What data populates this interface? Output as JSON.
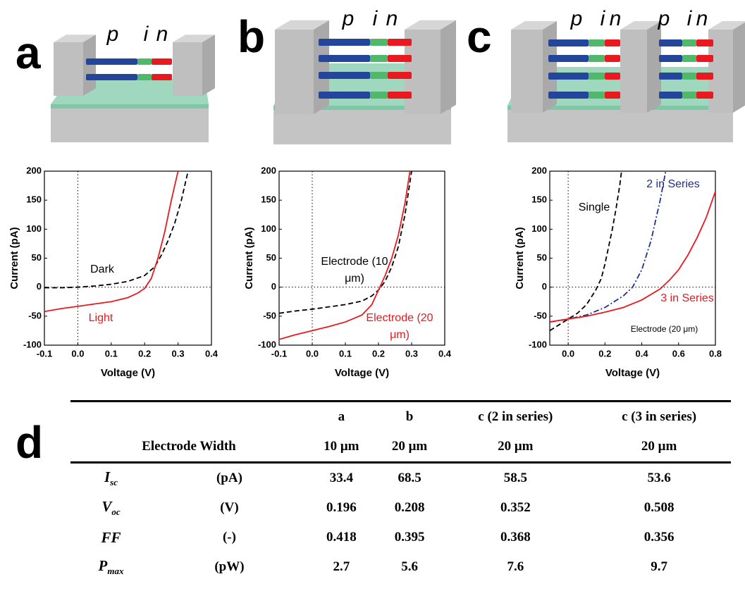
{
  "panel_letters": [
    "a",
    "b",
    "c",
    "d"
  ],
  "diagrams": [
    {
      "labels": [
        "p",
        "i",
        "n"
      ]
    },
    {
      "labels": [
        "p",
        "i",
        "n"
      ]
    },
    {
      "labels": [
        "p",
        "i",
        "n",
        "p",
        "i",
        "n"
      ]
    }
  ],
  "chart_data": [
    {
      "type": "line",
      "x_label": "Voltage (V)",
      "y_label": "Current (pA)",
      "xlim": [
        -0.1,
        0.4
      ],
      "ylim": [
        -100,
        200
      ],
      "xticks": [
        -0.1,
        {
          "value": 0,
          "label": "0.0"
        },
        0.1,
        0.2,
        0.3,
        0.4
      ],
      "yticks": [
        -100,
        -50,
        0,
        50,
        100,
        150,
        200
      ],
      "series": [
        {
          "name": "Dark",
          "color": "#000000",
          "dash": "dashed",
          "x": [
            -0.1,
            -0.05,
            0,
            0.05,
            0.1,
            0.15,
            0.2,
            0.23,
            0.25,
            0.27,
            0.29,
            0.31,
            0.33
          ],
          "values": [
            -1,
            -1,
            0,
            2,
            5,
            10,
            20,
            35,
            55,
            80,
            110,
            150,
            200
          ]
        },
        {
          "name": "Light",
          "color": "#e8191f",
          "dash": "solid",
          "x": [
            -0.1,
            -0.05,
            0,
            0.05,
            0.1,
            0.15,
            0.18,
            0.2,
            0.22,
            0.24,
            0.26,
            0.28,
            0.3
          ],
          "values": [
            -42,
            -37,
            -33,
            -29,
            -25,
            -18,
            -10,
            -2,
            15,
            50,
            95,
            150,
            200
          ]
        }
      ]
    },
    {
      "type": "line",
      "x_label": "Voltage (V)",
      "y_label": "Current (pA)",
      "xlim": [
        -0.1,
        0.4
      ],
      "ylim": [
        -100,
        200
      ],
      "xticks": [
        -0.1,
        {
          "value": 0,
          "label": "0.0"
        },
        0.1,
        0.2,
        0.3,
        0.4
      ],
      "yticks": [
        -100,
        -50,
        0,
        50,
        100,
        150,
        200
      ],
      "series": [
        {
          "name": "Electrode (10 μm)",
          "color": "#000000",
          "dash": "dashed",
          "x": [
            -0.1,
            -0.05,
            0,
            0.05,
            0.1,
            0.15,
            0.18,
            0.2,
            0.22,
            0.24,
            0.26,
            0.28,
            0.3
          ],
          "values": [
            -45,
            -41,
            -38,
            -34,
            -30,
            -24,
            -15,
            -5,
            10,
            35,
            70,
            125,
            200
          ]
        },
        {
          "name": "Electrode (20 μm)",
          "color": "#e8191f",
          "dash": "solid",
          "x": [
            -0.1,
            -0.05,
            0,
            0.05,
            0.1,
            0.15,
            0.18,
            0.2,
            0.22,
            0.24,
            0.26,
            0.28,
            0.295
          ],
          "values": [
            -90,
            -82,
            -75,
            -68,
            -60,
            -48,
            -30,
            -5,
            20,
            50,
            90,
            145,
            200
          ]
        }
      ]
    },
    {
      "type": "line",
      "x_label": "Voltage (V)",
      "y_label": "Current (pA)",
      "xlim": [
        -0.1,
        0.8
      ],
      "ylim": [
        -100,
        200
      ],
      "xticks": [
        {
          "value": 0,
          "label": "0.0"
        },
        0.2,
        0.4,
        0.6,
        0.8
      ],
      "yticks": [
        -100,
        -50,
        0,
        50,
        100,
        150,
        200
      ],
      "annotation": "Electrode (20 μm)",
      "series": [
        {
          "name": "Single",
          "color": "#000000",
          "dash": "dashed",
          "x": [
            -0.1,
            -0.05,
            0,
            0.05,
            0.1,
            0.15,
            0.18,
            0.2,
            0.22,
            0.24,
            0.26,
            0.28,
            0.29
          ],
          "values": [
            -75,
            -65,
            -55,
            -45,
            -30,
            -5,
            15,
            40,
            70,
            100,
            135,
            175,
            200
          ]
        },
        {
          "name": "2 in Series",
          "color": "#1d2f8f",
          "dash": "dash-dot",
          "x": [
            -0.1,
            0,
            0.1,
            0.2,
            0.3,
            0.35,
            0.4,
            0.45,
            0.5,
            0.53
          ],
          "values": [
            -60,
            -55,
            -48,
            -35,
            -15,
            0,
            30,
            80,
            150,
            200
          ]
        },
        {
          "name": "3 in Series",
          "color": "#e8191f",
          "dash": "solid",
          "x": [
            -0.1,
            0,
            0.1,
            0.2,
            0.3,
            0.4,
            0.5,
            0.55,
            0.6,
            0.65,
            0.7,
            0.75,
            0.8
          ],
          "values": [
            -60,
            -55,
            -50,
            -43,
            -35,
            -22,
            -3,
            12,
            30,
            55,
            85,
            120,
            165
          ]
        }
      ]
    }
  ],
  "table": {
    "columns": [
      "a",
      "b",
      "c (2 in series)",
      "c (3 in series)"
    ],
    "width_row": {
      "label": "Electrode Width",
      "values": [
        "10 μm",
        "20 μm",
        "20 μm",
        "20 μm"
      ]
    },
    "rows": [
      {
        "symbol": "I",
        "sub": "sc",
        "unit": "(pA)",
        "values": [
          33.4,
          68.5,
          58.5,
          53.6
        ]
      },
      {
        "symbol": "V",
        "sub": "oc",
        "unit": "(V)",
        "values": [
          0.196,
          0.208,
          0.352,
          0.508
        ]
      },
      {
        "symbol": "FF",
        "unit": "(-)",
        "values": [
          0.418,
          0.395,
          0.368,
          0.356
        ]
      },
      {
        "symbol": "P",
        "sub": "max",
        "unit": "(pW)",
        "values": [
          2.7,
          5.6,
          7.6,
          9.7
        ]
      }
    ]
  }
}
